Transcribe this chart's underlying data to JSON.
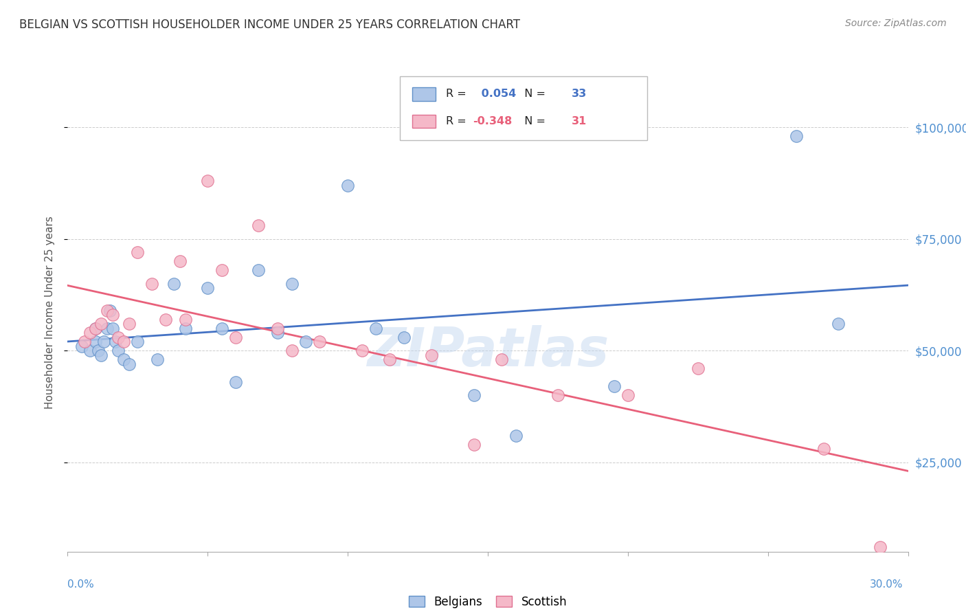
{
  "title": "BELGIAN VS SCOTTISH HOUSEHOLDER INCOME UNDER 25 YEARS CORRELATION CHART",
  "source": "Source: ZipAtlas.com",
  "ylabel": "Householder Income Under 25 years",
  "ytick_labels": [
    "$25,000",
    "$50,000",
    "$75,000",
    "$100,000"
  ],
  "ytick_values": [
    25000,
    50000,
    75000,
    100000
  ],
  "xlim": [
    0.0,
    0.3
  ],
  "ylim": [
    5000,
    112000
  ],
  "watermark": "ZIPatlas",
  "legend_r_belgian": "0.054",
  "legend_n_belgian": "33",
  "legend_r_scottish": "-0.348",
  "legend_n_scottish": "31",
  "belgian_color": "#aec6e8",
  "scottish_color": "#f5b8c8",
  "belgian_edge_color": "#6090c8",
  "scottish_edge_color": "#e07090",
  "belgian_line_color": "#4472c4",
  "scottish_line_color": "#e8607a",
  "belgian_x": [
    0.005,
    0.008,
    0.01,
    0.01,
    0.011,
    0.012,
    0.013,
    0.014,
    0.015,
    0.016,
    0.017,
    0.018,
    0.02,
    0.022,
    0.025,
    0.032,
    0.038,
    0.042,
    0.05,
    0.055,
    0.06,
    0.068,
    0.075,
    0.08,
    0.085,
    0.1,
    0.11,
    0.12,
    0.145,
    0.16,
    0.195,
    0.26,
    0.275
  ],
  "belgian_y": [
    51000,
    50000,
    52000,
    55000,
    50000,
    49000,
    52000,
    55000,
    59000,
    55000,
    52000,
    50000,
    48000,
    47000,
    52000,
    48000,
    65000,
    55000,
    64000,
    55000,
    43000,
    68000,
    54000,
    65000,
    52000,
    87000,
    55000,
    53000,
    40000,
    31000,
    42000,
    98000,
    56000
  ],
  "scottish_x": [
    0.006,
    0.008,
    0.01,
    0.012,
    0.014,
    0.016,
    0.018,
    0.02,
    0.022,
    0.025,
    0.03,
    0.035,
    0.04,
    0.042,
    0.05,
    0.055,
    0.06,
    0.068,
    0.075,
    0.08,
    0.09,
    0.105,
    0.115,
    0.13,
    0.145,
    0.155,
    0.175,
    0.2,
    0.225,
    0.27,
    0.29
  ],
  "scottish_y": [
    52000,
    54000,
    55000,
    56000,
    59000,
    58000,
    53000,
    52000,
    56000,
    72000,
    65000,
    57000,
    70000,
    57000,
    88000,
    68000,
    53000,
    78000,
    55000,
    50000,
    52000,
    50000,
    48000,
    49000,
    29000,
    48000,
    40000,
    40000,
    46000,
    28000,
    6000
  ],
  "background_color": "#ffffff",
  "grid_color": "#cccccc",
  "title_color": "#333333",
  "right_ytick_color": "#5090d0"
}
